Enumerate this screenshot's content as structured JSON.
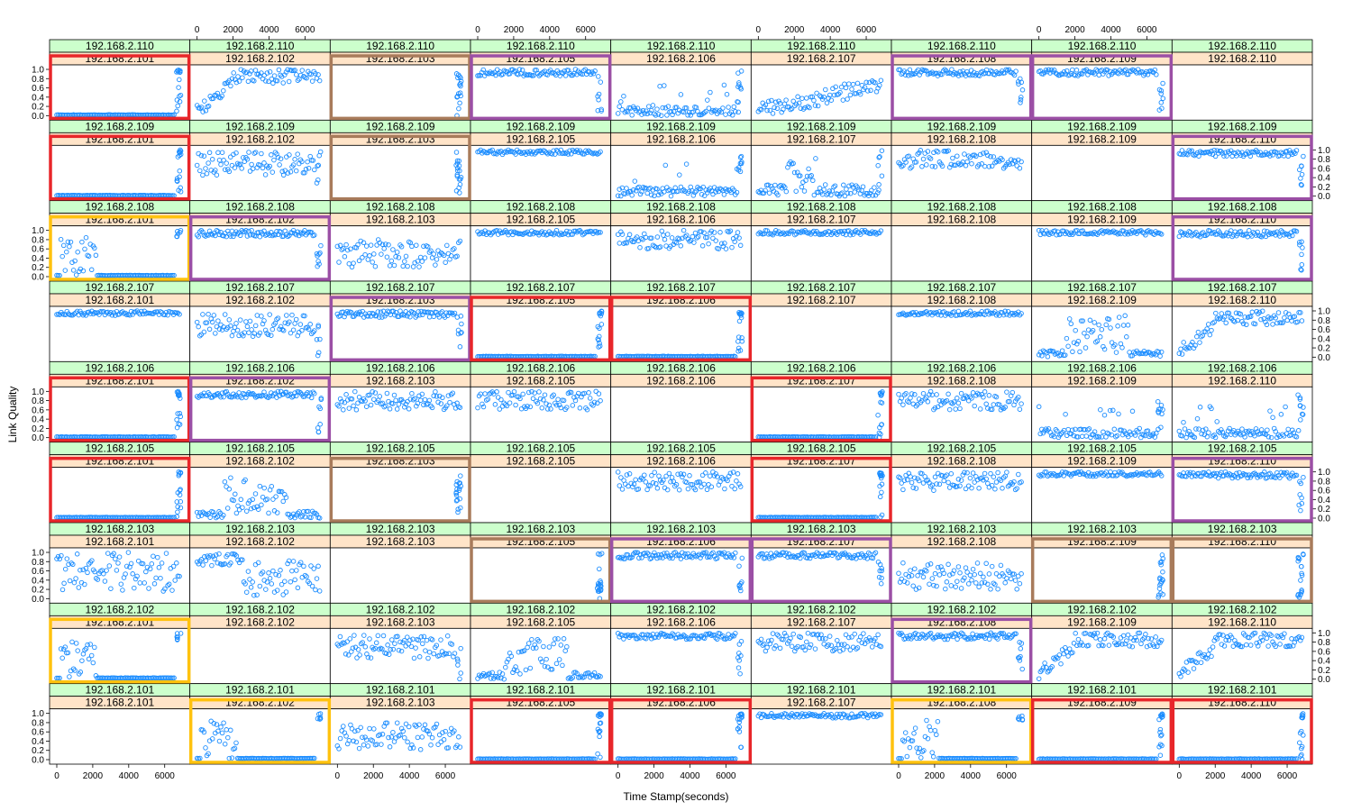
{
  "chart_data": {
    "type": "scatter",
    "layout": "lattice grid of panels: rows = first IP, columns = second IP",
    "xlabel": "Time Stamp(seconds)",
    "ylabel": "Link Quality",
    "xlim": [
      0,
      7000
    ],
    "ylim": [
      0.0,
      1.0
    ],
    "x_ticks": [
      "0",
      "2000",
      "4000",
      "6000"
    ],
    "y_ticks": [
      "0.0",
      "0.2",
      "0.4",
      "0.6",
      "0.8",
      "1.0"
    ],
    "marker": "open circle",
    "colors": {
      "points": "#1a8cff",
      "strip_top": "#ccffcc",
      "strip_bottom": "#ffe4c8",
      "highlight_red": "#e8262a",
      "highlight_brown": "#a87b5b",
      "highlight_purple": "#9b4fa5",
      "highlight_yellow": "#ffc20e"
    },
    "row_ips": [
      "192.168.2.110",
      "192.168.2.109",
      "192.168.2.108",
      "192.168.2.107",
      "192.168.2.106",
      "192.168.2.105",
      "192.168.2.103",
      "192.168.2.102",
      "192.168.2.101"
    ],
    "col_ips": [
      "192.168.2.101",
      "192.168.2.102",
      "192.168.2.103",
      "192.168.2.105",
      "192.168.2.106",
      "192.168.2.107",
      "192.168.2.108",
      "192.168.2.109",
      "192.168.2.110"
    ],
    "panel_patterns": [
      [
        "zero_then_high",
        "rise_noisy_high",
        "late_spike",
        "high_drop_end",
        "low_spiky",
        "rise_mid",
        "high_drop_end",
        "high_drop_end",
        "empty"
      ],
      [
        "zero_then_high",
        "mid_high_noisy",
        "late_spike",
        "high_stable",
        "low_spiky",
        "low_burst_early",
        "high_noisy",
        "empty",
        "high_drop_end"
      ],
      [
        "early_hump_zero",
        "high_drop_end",
        "mid_noisy",
        "high_stable",
        "high_noisy",
        "high_stable",
        "empty",
        "high_stable",
        "high_drop_end"
      ],
      [
        "high_stable",
        "mid_high_noisy",
        "high_drop_end",
        "zero_then_high",
        "zero_then_high",
        "empty",
        "high_stable",
        "low_middle_burst",
        "rise_noisy_high"
      ],
      [
        "zero_then_high",
        "high_drop_end",
        "high_noisy",
        "high_noisy",
        "empty",
        "zero_then_high",
        "high_noisy",
        "low_spiky",
        "low_spiky"
      ],
      [
        "zero_then_high",
        "low_middle_burst",
        "late_spike",
        "empty",
        "high_noisy",
        "zero_then_high",
        "high_noisy",
        "high_stable",
        "high_drop_end"
      ],
      [
        "full_noisy",
        "high_then_mid",
        "empty",
        "late_spike",
        "high_drop_end",
        "high_drop_end",
        "mid_noisy",
        "late_spike",
        "late_spike"
      ],
      [
        "early_hump_zero",
        "empty",
        "mid_high_noisy",
        "low_middle_burst",
        "high_drop_end",
        "high_noisy",
        "high_drop_end",
        "rise_noisy_high",
        "rise_noisy_high"
      ],
      [
        "empty",
        "early_hump_zero",
        "mid_noisy",
        "zero_then_high",
        "zero_then_high",
        "high_stable",
        "early_hump_zero",
        "zero_then_high",
        "zero_then_high"
      ]
    ],
    "highlights": [
      {
        "row": 0,
        "col": 0,
        "color": "red"
      },
      {
        "row": 0,
        "col": 2,
        "color": "brown"
      },
      {
        "row": 0,
        "col": 3,
        "color": "purple"
      },
      {
        "row": 0,
        "col": 6,
        "color": "purple"
      },
      {
        "row": 0,
        "col": 7,
        "color": "purple"
      },
      {
        "row": 1,
        "col": 0,
        "color": "red"
      },
      {
        "row": 1,
        "col": 2,
        "color": "brown"
      },
      {
        "row": 1,
        "col": 8,
        "color": "purple"
      },
      {
        "row": 2,
        "col": 0,
        "color": "yellow"
      },
      {
        "row": 2,
        "col": 1,
        "color": "purple"
      },
      {
        "row": 2,
        "col": 8,
        "color": "purple"
      },
      {
        "row": 3,
        "col": 2,
        "color": "purple"
      },
      {
        "row": 3,
        "col": 3,
        "color": "red"
      },
      {
        "row": 3,
        "col": 4,
        "color": "red"
      },
      {
        "row": 4,
        "col": 0,
        "color": "red"
      },
      {
        "row": 4,
        "col": 1,
        "color": "purple"
      },
      {
        "row": 4,
        "col": 5,
        "color": "red"
      },
      {
        "row": 5,
        "col": 0,
        "color": "red"
      },
      {
        "row": 5,
        "col": 2,
        "color": "brown"
      },
      {
        "row": 5,
        "col": 5,
        "color": "red"
      },
      {
        "row": 5,
        "col": 8,
        "color": "purple"
      },
      {
        "row": 6,
        "col": 3,
        "color": "brown"
      },
      {
        "row": 6,
        "col": 4,
        "color": "purple"
      },
      {
        "row": 6,
        "col": 5,
        "color": "purple"
      },
      {
        "row": 6,
        "col": 7,
        "color": "brown"
      },
      {
        "row": 6,
        "col": 8,
        "color": "brown"
      },
      {
        "row": 7,
        "col": 0,
        "color": "yellow"
      },
      {
        "row": 7,
        "col": 6,
        "color": "purple"
      },
      {
        "row": 8,
        "col": 1,
        "color": "yellow"
      },
      {
        "row": 8,
        "col": 3,
        "color": "red"
      },
      {
        "row": 8,
        "col": 4,
        "color": "red"
      },
      {
        "row": 8,
        "col": 6,
        "color": "yellow"
      },
      {
        "row": 8,
        "col": 7,
        "color": "red"
      },
      {
        "row": 8,
        "col": 8,
        "color": "red"
      }
    ]
  }
}
